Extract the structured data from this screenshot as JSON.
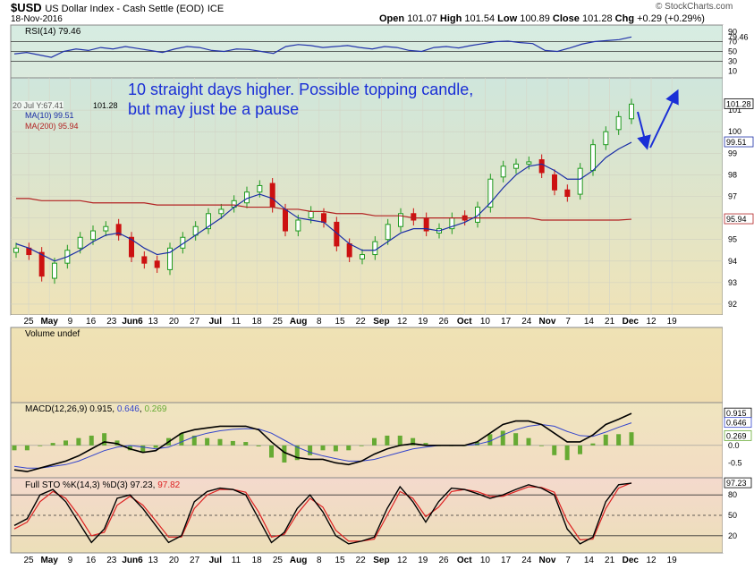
{
  "header": {
    "symbol": "$USD",
    "name": "US Dollar Index - Cash Settle (EOD)",
    "exchange": "ICE",
    "date": "18-Nov-2016",
    "open_label": "Open",
    "open": "101.07",
    "high_label": "High",
    "high": "101.54",
    "low_label": "Low",
    "low": "100.89",
    "close_label": "Close",
    "close": "101.28",
    "chg_label": "Chg",
    "chg": "+0.29 (+0.29%)",
    "watermark": "© StockCharts.com"
  },
  "annotation": {
    "line1": "10 straight days higher. Possible topping candle,",
    "line2": "but may just be a pause"
  },
  "colors": {
    "up": "#1f9a1f",
    "down": "#cc1111",
    "ma10": "#1a2ea6",
    "ma200": "#b22222",
    "annotation": "#1a2fd6",
    "rsi": "#2233aa",
    "macd": "#000000",
    "signal": "#3344cc",
    "hist": "#66aa33",
    "stoK": "#000000",
    "stoD": "#dd2222"
  },
  "chart_data": [
    {
      "type": "line",
      "panel": "RSI",
      "label": "RSI(14) 79.46",
      "ylim": [
        0,
        100
      ],
      "tick_labels": [
        "90",
        "79.46",
        "70",
        "50",
        "30",
        "10"
      ],
      "reference_lines": [
        70,
        50,
        30
      ],
      "series": [
        {
          "name": "RSI(14)",
          "values": [
            45,
            48,
            43,
            38,
            50,
            55,
            52,
            58,
            55,
            60,
            56,
            52,
            48,
            55,
            60,
            58,
            52,
            50,
            55,
            54,
            50,
            46,
            60,
            64,
            62,
            58,
            60,
            62,
            58,
            55,
            60,
            58,
            52,
            50,
            58,
            60,
            57,
            62,
            66,
            70,
            71,
            68,
            66,
            52,
            50,
            57,
            65,
            70,
            72,
            74,
            79.46
          ]
        }
      ]
    },
    {
      "type": "candlestick",
      "panel": "price",
      "ylim": [
        91.5,
        102.5
      ],
      "y_ticks": [
        92,
        93,
        94,
        95,
        96,
        97,
        98,
        99,
        100,
        101
      ],
      "tag_values": [
        "101.28",
        "99.51",
        "95.94"
      ],
      "legend": [
        "MA(10) 99.51",
        "MA(200) 95.94"
      ],
      "ohlc_tooltip": "20 Jul Y:67.41",
      "last_close": "101.28",
      "x_tick_labels": [
        "25",
        "May",
        "9",
        "16",
        "23",
        "Jun6",
        "13",
        "20",
        "27",
        "Jul",
        "11",
        "18",
        "25",
        "Aug",
        "8",
        "15",
        "22",
        "Sep",
        "12",
        "19",
        "26",
        "Oct",
        "10",
        "17",
        "24",
        "Nov",
        "7",
        "14",
        "21",
        "Dec",
        "12",
        "19"
      ],
      "closes": [
        94.6,
        94.3,
        93.3,
        93.9,
        94.5,
        95.1,
        95.4,
        95.6,
        95.2,
        94.2,
        93.9,
        93.7,
        94.6,
        95.1,
        95.6,
        96.2,
        96.4,
        96.8,
        97.2,
        97.5,
        96.5,
        95.4,
        95.9,
        96.3,
        95.8,
        94.7,
        94.2,
        94.3,
        94.9,
        95.7,
        96.2,
        95.9,
        95.4,
        95.5,
        96.0,
        95.9,
        96.5,
        97.8,
        98.4,
        98.5,
        98.6,
        98.1,
        97.3,
        97.0,
        98.3,
        99.4,
        100.0,
        100.7,
        101.28
      ],
      "series": [
        {
          "name": "MA(10)",
          "values": [
            94.8,
            94.6,
            94.3,
            94.0,
            94.2,
            94.5,
            94.9,
            95.2,
            95.3,
            95.0,
            94.6,
            94.3,
            94.4,
            94.8,
            95.2,
            95.6,
            96.0,
            96.5,
            96.9,
            97.1,
            96.9,
            96.4,
            96.0,
            95.9,
            95.8,
            95.3,
            94.8,
            94.5,
            94.5,
            94.9,
            95.3,
            95.5,
            95.5,
            95.4,
            95.6,
            95.8,
            96.1,
            96.7,
            97.4,
            98.0,
            98.4,
            98.5,
            98.2,
            97.8,
            97.8,
            98.2,
            98.8,
            99.2,
            99.51
          ]
        },
        {
          "name": "MA(200)",
          "values": [
            96.9,
            96.9,
            96.8,
            96.8,
            96.8,
            96.8,
            96.7,
            96.7,
            96.7,
            96.7,
            96.7,
            96.6,
            96.6,
            96.6,
            96.6,
            96.6,
            96.6,
            96.6,
            96.5,
            96.5,
            96.5,
            96.4,
            96.4,
            96.3,
            96.3,
            96.2,
            96.2,
            96.2,
            96.1,
            96.1,
            96.1,
            96.0,
            96.0,
            96.0,
            96.0,
            96.0,
            96.0,
            96.0,
            96.0,
            96.0,
            96.0,
            95.9,
            95.9,
            95.9,
            95.9,
            95.9,
            95.9,
            95.9,
            95.94
          ]
        }
      ]
    },
    {
      "type": "bar",
      "panel": "Volume",
      "label": "Volume undef",
      "values": []
    },
    {
      "type": "line",
      "panel": "MACD",
      "label_name": "MACD(12,26,9)",
      "label_values": [
        "0.915",
        "0.646",
        "0.269"
      ],
      "y_ticks": [
        -0.5,
        0.0
      ],
      "tag_values": [
        "0.915",
        "0.646",
        "0.269"
      ],
      "ylim": [
        -0.85,
        1.15
      ],
      "series": [
        {
          "name": "MACD",
          "values": [
            -0.7,
            -0.75,
            -0.65,
            -0.55,
            -0.45,
            -0.3,
            -0.1,
            0.1,
            0.05,
            -0.1,
            -0.2,
            -0.15,
            0.1,
            0.35,
            0.45,
            0.5,
            0.55,
            0.55,
            0.55,
            0.45,
            0.1,
            -0.2,
            -0.35,
            -0.4,
            -0.4,
            -0.5,
            -0.55,
            -0.45,
            -0.25,
            -0.1,
            0.0,
            0.05,
            0.0,
            0.0,
            0.0,
            0.0,
            0.1,
            0.35,
            0.6,
            0.7,
            0.7,
            0.6,
            0.35,
            0.1,
            0.1,
            0.3,
            0.6,
            0.75,
            0.915
          ]
        },
        {
          "name": "Signal",
          "values": [
            -0.6,
            -0.65,
            -0.65,
            -0.6,
            -0.55,
            -0.45,
            -0.3,
            -0.15,
            -0.05,
            0.0,
            -0.05,
            -0.1,
            -0.05,
            0.1,
            0.25,
            0.35,
            0.42,
            0.46,
            0.48,
            0.47,
            0.35,
            0.15,
            -0.05,
            -0.2,
            -0.3,
            -0.38,
            -0.45,
            -0.45,
            -0.4,
            -0.3,
            -0.2,
            -0.1,
            -0.05,
            0.0,
            0.0,
            0.0,
            0.03,
            0.12,
            0.3,
            0.45,
            0.55,
            0.6,
            0.55,
            0.4,
            0.28,
            0.26,
            0.38,
            0.52,
            0.646
          ]
        }
      ]
    },
    {
      "type": "line",
      "panel": "Full STO",
      "label_name": "Full STO %K(14,3) %D(3)",
      "label_values": [
        "97.23",
        "97.82"
      ],
      "ylim": [
        0,
        100
      ],
      "y_ticks": [
        20,
        50,
        80
      ],
      "reference_lines": [
        20,
        50,
        80
      ],
      "tag_values": [
        "97.23"
      ],
      "x_tick_labels": [
        "25",
        "May",
        "9",
        "16",
        "23",
        "Jun6",
        "13",
        "20",
        "27",
        "Jul",
        "11",
        "18",
        "25",
        "Aug",
        "8",
        "15",
        "22",
        "Sep",
        "12",
        "19",
        "26",
        "Oct",
        "10",
        "17",
        "24",
        "Nov",
        "7",
        "14",
        "21",
        "Dec",
        "12",
        "19"
      ],
      "series": [
        {
          "name": "%K",
          "values": [
            35,
            45,
            80,
            88,
            70,
            40,
            10,
            30,
            75,
            80,
            60,
            35,
            10,
            20,
            70,
            85,
            90,
            88,
            80,
            45,
            10,
            25,
            60,
            80,
            55,
            20,
            8,
            12,
            18,
            60,
            92,
            70,
            40,
            70,
            90,
            88,
            82,
            75,
            80,
            88,
            95,
            90,
            80,
            30,
            8,
            18,
            70,
            95,
            97.23
          ]
        },
        {
          "name": "%D",
          "values": [
            30,
            40,
            70,
            85,
            75,
            50,
            20,
            25,
            65,
            78,
            65,
            42,
            18,
            18,
            60,
            80,
            88,
            88,
            84,
            55,
            18,
            22,
            52,
            75,
            62,
            28,
            12,
            12,
            15,
            50,
            85,
            75,
            48,
            62,
            85,
            88,
            85,
            78,
            78,
            85,
            92,
            91,
            84,
            42,
            14,
            15,
            60,
            90,
            97.82
          ]
        }
      ]
    }
  ]
}
